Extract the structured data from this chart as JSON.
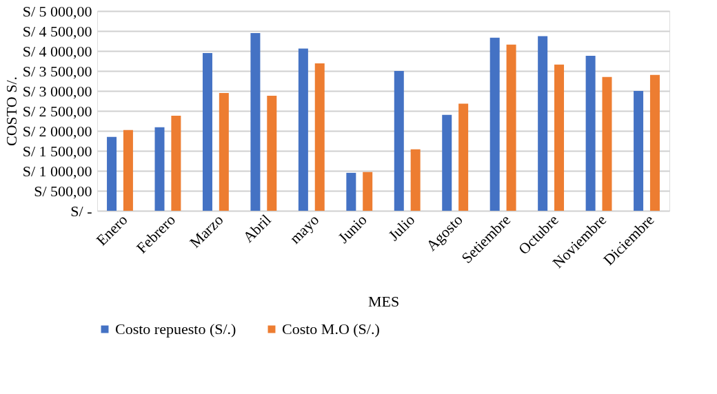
{
  "chart_data": {
    "type": "bar",
    "xlabel": "MES",
    "ylabel": "COSTO S/.",
    "categories": [
      "Enero",
      "Febrero",
      "Marzo",
      "Abril",
      "mayo",
      "Junio",
      "Julio",
      "Agosto",
      "Setiembre",
      "Octubre",
      "Noviembre",
      "Diciembre"
    ],
    "series": [
      {
        "name": "Costo repuesto (S/.)",
        "color": "#4472c4",
        "values": [
          1850,
          2090,
          3950,
          4450,
          4060,
          950,
          3500,
          2400,
          4330,
          4370,
          3880,
          3000
        ]
      },
      {
        "name": "Costo M.O (S/.)",
        "color": "#ed7d31",
        "values": [
          2020,
          2380,
          2950,
          2880,
          3690,
          970,
          1540,
          2680,
          4160,
          3660,
          3350,
          3400
        ]
      }
    ],
    "ylim": [
      0,
      5000
    ],
    "yticks": [
      {
        "value": 0,
        "label": "S/ -"
      },
      {
        "value": 500,
        "label": "S/ 500,00"
      },
      {
        "value": 1000,
        "label": "S/ 1 000,00"
      },
      {
        "value": 1500,
        "label": "S/ 1 500,00"
      },
      {
        "value": 2000,
        "label": "S/ 2 000,00"
      },
      {
        "value": 2500,
        "label": "S/ 2 500,00"
      },
      {
        "value": 3000,
        "label": "S/ 3 000,00"
      },
      {
        "value": 3500,
        "label": "S/ 3 500,00"
      },
      {
        "value": 4000,
        "label": "S/ 4 000,00"
      },
      {
        "value": 4500,
        "label": "S/ 4 500,00"
      },
      {
        "value": 5000,
        "label": "S/ 5 000,00"
      }
    ],
    "grid": "y",
    "legend": "bottom"
  }
}
